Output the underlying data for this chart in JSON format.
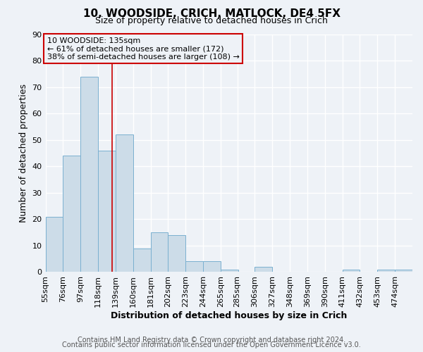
{
  "title": "10, WOODSIDE, CRICH, MATLOCK, DE4 5FX",
  "subtitle": "Size of property relative to detached houses in Crich",
  "xlabel": "Distribution of detached houses by size in Crich",
  "ylabel": "Number of detached properties",
  "bar_color": "#ccdce8",
  "bar_edge_color": "#7ab0d0",
  "bin_labels": [
    "55sqm",
    "76sqm",
    "97sqm",
    "118sqm",
    "139sqm",
    "160sqm",
    "181sqm",
    "202sqm",
    "223sqm",
    "244sqm",
    "265sqm",
    "285sqm",
    "306sqm",
    "327sqm",
    "348sqm",
    "369sqm",
    "390sqm",
    "411sqm",
    "432sqm",
    "453sqm",
    "474sqm"
  ],
  "bar_heights": [
    21,
    44,
    74,
    46,
    52,
    9,
    15,
    14,
    4,
    4,
    1,
    0,
    2,
    0,
    0,
    0,
    0,
    1,
    0,
    1,
    1
  ],
  "ylim": [
    0,
    90
  ],
  "yticks": [
    0,
    10,
    20,
    30,
    40,
    50,
    60,
    70,
    80,
    90
  ],
  "property_line_x": 135,
  "bin_edges_values": [
    55,
    76,
    97,
    118,
    139,
    160,
    181,
    202,
    223,
    244,
    265,
    285,
    306,
    327,
    348,
    369,
    390,
    411,
    432,
    453,
    474,
    495
  ],
  "annotation_line1": "10 WOODSIDE: 135sqm",
  "annotation_line2": "← 61% of detached houses are smaller (172)",
  "annotation_line3": "38% of semi-detached houses are larger (108) →",
  "annotation_box_color": "#cc0000",
  "footer_line1": "Contains HM Land Registry data © Crown copyright and database right 2024.",
  "footer_line2": "Contains public sector information licensed under the Open Government Licence v3.0.",
  "background_color": "#eef2f7",
  "grid_color": "#ffffff",
  "title_fontsize": 11,
  "subtitle_fontsize": 9,
  "axis_label_fontsize": 9,
  "tick_fontsize": 8,
  "annotation_fontsize": 8,
  "footer_fontsize": 7
}
